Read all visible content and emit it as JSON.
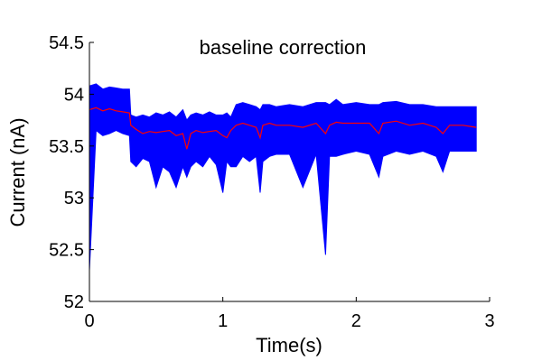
{
  "chart_data": {
    "type": "line",
    "title": "baseline correction",
    "xlabel": "Time(s)",
    "ylabel": "Current (nA)",
    "xlim": [
      0,
      3
    ],
    "ylim": [
      52,
      54.5
    ],
    "xticks": [
      0,
      1,
      2,
      3
    ],
    "xtick_labels": [
      "0",
      "1",
      "2",
      "3"
    ],
    "yticks": [
      52,
      52.5,
      53,
      53.5,
      54,
      54.5
    ],
    "ytick_labels": [
      "52",
      "52.5",
      "53",
      "53.5",
      "54",
      "54.5"
    ],
    "grid": false,
    "legend": "none",
    "series": [
      {
        "color": "#0000ff",
        "style": "raw-trace",
        "x": [
          0,
          0.05,
          0.1,
          0.15,
          0.2,
          0.25,
          0.3,
          0.31,
          0.35,
          0.4,
          0.45,
          0.5,
          0.55,
          0.6,
          0.65,
          0.7,
          0.73,
          0.76,
          0.8,
          0.85,
          0.9,
          0.95,
          1.0,
          1.03,
          1.06,
          1.1,
          1.15,
          1.2,
          1.25,
          1.28,
          1.3,
          1.35,
          1.4,
          1.5,
          1.6,
          1.7,
          1.77,
          1.8,
          1.85,
          1.9,
          2.0,
          2.1,
          2.17,
          2.2,
          2.3,
          2.4,
          2.5,
          2.6,
          2.65,
          2.7,
          2.8,
          2.9
        ],
        "upper": [
          54.08,
          54.1,
          54.05,
          54.07,
          54.06,
          54.05,
          54.05,
          53.8,
          53.78,
          53.8,
          53.78,
          53.82,
          53.8,
          53.83,
          53.78,
          53.85,
          53.75,
          53.8,
          53.82,
          53.8,
          53.83,
          53.8,
          53.8,
          53.82,
          53.78,
          53.9,
          53.92,
          53.9,
          53.88,
          53.85,
          53.9,
          53.9,
          53.88,
          53.9,
          53.88,
          53.92,
          53.92,
          53.9,
          53.95,
          53.9,
          53.92,
          53.9,
          53.9,
          53.92,
          53.93,
          53.9,
          53.9,
          53.88,
          53.88,
          53.88,
          53.88,
          53.88
        ],
        "lower": [
          52.3,
          53.65,
          53.6,
          53.62,
          53.65,
          53.62,
          53.6,
          53.35,
          53.3,
          53.38,
          53.35,
          53.1,
          53.3,
          53.25,
          53.1,
          53.3,
          53.2,
          53.3,
          53.35,
          53.3,
          53.4,
          53.32,
          53.05,
          53.35,
          53.3,
          53.3,
          53.4,
          53.35,
          53.4,
          53.05,
          53.35,
          53.4,
          53.42,
          53.42,
          53.1,
          53.42,
          52.45,
          53.4,
          53.4,
          53.42,
          53.45,
          53.42,
          53.2,
          53.4,
          53.45,
          53.42,
          53.45,
          53.4,
          53.25,
          53.45,
          53.45,
          53.45
        ]
      },
      {
        "color": "#ff0000",
        "style": "smoothed",
        "x": [
          0,
          0.05,
          0.1,
          0.15,
          0.2,
          0.25,
          0.3,
          0.31,
          0.35,
          0.4,
          0.45,
          0.5,
          0.55,
          0.6,
          0.65,
          0.7,
          0.73,
          0.76,
          0.8,
          0.85,
          0.9,
          0.95,
          1.0,
          1.03,
          1.06,
          1.1,
          1.15,
          1.2,
          1.25,
          1.28,
          1.3,
          1.35,
          1.4,
          1.5,
          1.6,
          1.7,
          1.77,
          1.8,
          1.85,
          1.9,
          2.0,
          2.1,
          2.17,
          2.2,
          2.3,
          2.4,
          2.5,
          2.6,
          2.65,
          2.7,
          2.8,
          2.9
        ],
        "values": [
          53.85,
          53.87,
          53.84,
          53.86,
          53.84,
          53.83,
          53.82,
          53.7,
          53.66,
          53.62,
          53.64,
          53.63,
          53.64,
          53.65,
          53.6,
          53.62,
          53.47,
          53.62,
          53.65,
          53.63,
          53.64,
          53.65,
          53.6,
          53.58,
          53.65,
          53.7,
          53.72,
          53.7,
          53.68,
          53.58,
          53.7,
          53.72,
          53.7,
          53.7,
          53.68,
          53.72,
          53.62,
          53.7,
          53.73,
          53.72,
          53.72,
          53.72,
          53.62,
          53.72,
          53.74,
          53.7,
          53.72,
          53.68,
          53.62,
          53.7,
          53.7,
          53.68
        ]
      }
    ]
  }
}
